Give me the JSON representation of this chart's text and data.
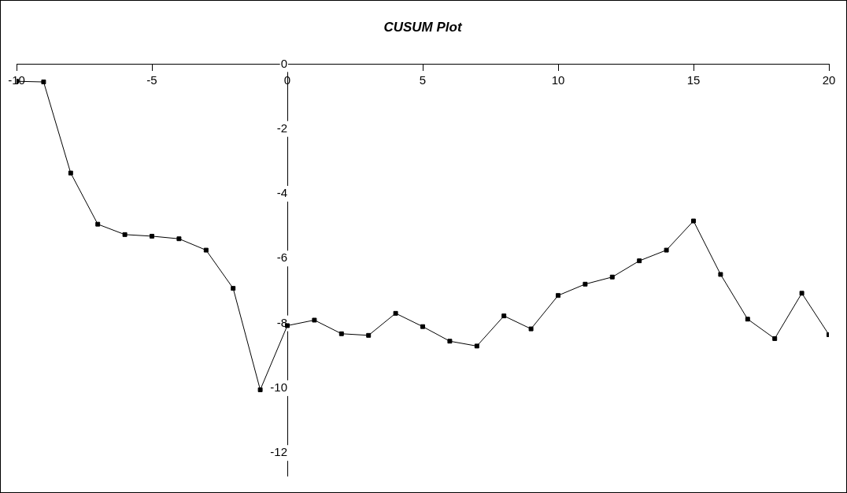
{
  "chart_data": {
    "type": "line",
    "title": "CUSUM Plot",
    "x": [
      -10,
      -9,
      -8,
      -7,
      -6,
      -5,
      -4,
      -3,
      -2,
      -1,
      0,
      1,
      2,
      3,
      4,
      5,
      6,
      7,
      8,
      9,
      10,
      11,
      12,
      13,
      14,
      15,
      16,
      17,
      18,
      19,
      20
    ],
    "series": [
      {
        "color": "#000000",
        "values": [
          -0.53,
          -0.55,
          -3.36,
          -4.94,
          -5.26,
          -5.31,
          -5.39,
          -5.74,
          -6.92,
          -10.05,
          -8.07,
          -7.9,
          -8.32,
          -8.37,
          -7.69,
          -8.1,
          -8.55,
          -8.7,
          -7.77,
          -8.17,
          -7.14,
          -6.79,
          -6.57,
          -6.07,
          -5.74,
          -4.84,
          -6.49,
          -7.87,
          -8.47,
          -7.07,
          -8.35
        ]
      }
    ],
    "xlim": [
      -10,
      20
    ],
    "xticks": [
      -10,
      -5,
      0,
      5,
      10,
      15,
      20
    ],
    "ylim": [
      -12.7,
      0
    ],
    "yticks": [
      0,
      -2,
      -4,
      -6,
      -8,
      -10,
      -12
    ],
    "grid": false,
    "legend": false,
    "marker": "square",
    "line_style": "solid"
  }
}
